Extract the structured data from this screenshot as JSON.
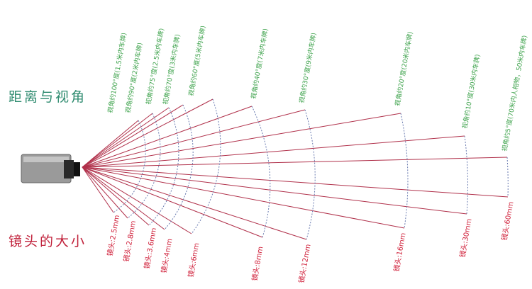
{
  "titles": {
    "distance_angle": "距离与视角",
    "lens_size": "镜头的大小"
  },
  "colors": {
    "angle_text": "#3fa34d",
    "lens_text": "#d0203a",
    "ray": "#b0304a",
    "arc": "#6a7bb0",
    "title_green": "#2e8b6f",
    "title_red": "#c0203a"
  },
  "lenses": [
    {
      "lens": "镜头:2.5mm",
      "angle": "视角约100°度(1.5米内车牌)"
    },
    {
      "lens": "镜头:2.8mm",
      "angle": "视角约90°度(2米内车牌)"
    },
    {
      "lens": "镜头:3.6mm",
      "angle": "视角约75°度(2.5米内车牌)"
    },
    {
      "lens": "镜头:4mm",
      "angle": "视角约70°度(3米内车牌)"
    },
    {
      "lens": "镜头:6mm",
      "angle": "视角约60°度(5米内车牌)"
    },
    {
      "lens": "镜头:8mm",
      "angle": "视角约40°度(7米内车牌)"
    },
    {
      "lens": "镜头:12mm",
      "angle": "视角约30°度(9米内车牌)"
    },
    {
      "lens": "镜头:16mm",
      "angle": "视角约20°度(20米内车牌)"
    },
    {
      "lens": "镜头:30mm",
      "angle": "视角约10°度(30米内车牌)"
    },
    {
      "lens": "镜头:60mm",
      "angle": "视角约5°度(70米内人相物，50米内车牌)"
    }
  ]
}
